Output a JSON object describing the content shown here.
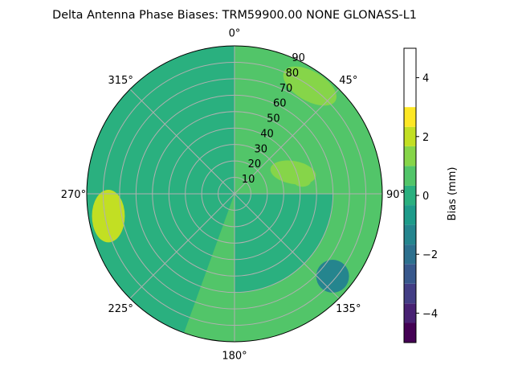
{
  "chart_data": {
    "type": "polar-contour",
    "title": "Delta Antenna Phase Biases: TRM59900.00     NONE GLONASS-L1",
    "azimuth_direction": "clockwise",
    "azimuth_zero": "top",
    "radial_max": 90,
    "radial_ticks": [
      "10",
      "20",
      "30",
      "40",
      "50",
      "60",
      "70",
      "80",
      "90"
    ],
    "angular_ticks": [
      {
        "angle": 0,
        "label": "0°"
      },
      {
        "angle": 45,
        "label": "45°"
      },
      {
        "angle": 90,
        "label": "90°"
      },
      {
        "angle": 135,
        "label": "135°"
      },
      {
        "angle": 180,
        "label": "180°"
      },
      {
        "angle": 225,
        "label": "225°"
      },
      {
        "angle": 270,
        "label": "270°"
      },
      {
        "angle": 315,
        "label": "315°"
      }
    ],
    "grid": true,
    "colorbar": {
      "label": "Bias (mm)",
      "min": -5,
      "max": 5,
      "tick_values": [
        -4,
        -2,
        0,
        2,
        4
      ],
      "tick_labels": [
        "−4",
        "−2",
        "0",
        "2",
        "4"
      ],
      "levels": [
        -5,
        -4.33,
        -3.67,
        -3,
        -2.33,
        -1.67,
        -1,
        -0.33,
        0.33,
        1,
        1.67,
        2.33,
        3,
        3.67,
        4.33,
        5
      ],
      "colors": [
        "#440154",
        "#482173",
        "#433e85",
        "#38588c",
        "#2d708e",
        "#25858e",
        "#1e9b8a",
        "#2ab07f",
        "#52c569",
        "#86d549",
        "#c2df23",
        "#fde725"
      ],
      "placement": "right"
    },
    "background_band_value": 0.7,
    "regions": [
      {
        "name": "nw-band",
        "value": 0.0,
        "az_range": [
          200,
          360
        ],
        "el_range": [
          0,
          90
        ]
      },
      {
        "name": "ne-upper-lobe",
        "value": 1.5,
        "az_center": 35,
        "el_center": 15
      },
      {
        "name": "east-small-lobe",
        "value": 1.4,
        "az_center": 80,
        "el_center": 42
      },
      {
        "name": "center-east-lobe",
        "value": 1.3,
        "az_center": 70,
        "el_center": 65
      },
      {
        "name": "west-high-lobe",
        "value": 1.9,
        "az_center": 260,
        "el_center": 10
      },
      {
        "name": "se-low-lobe",
        "value": -1.3,
        "az_center": 130,
        "el_center": 12
      },
      {
        "name": "south-east-band",
        "value": 0.2,
        "az_range": [
          90,
          180
        ],
        "el_range": [
          0,
          60
        ]
      }
    ]
  }
}
